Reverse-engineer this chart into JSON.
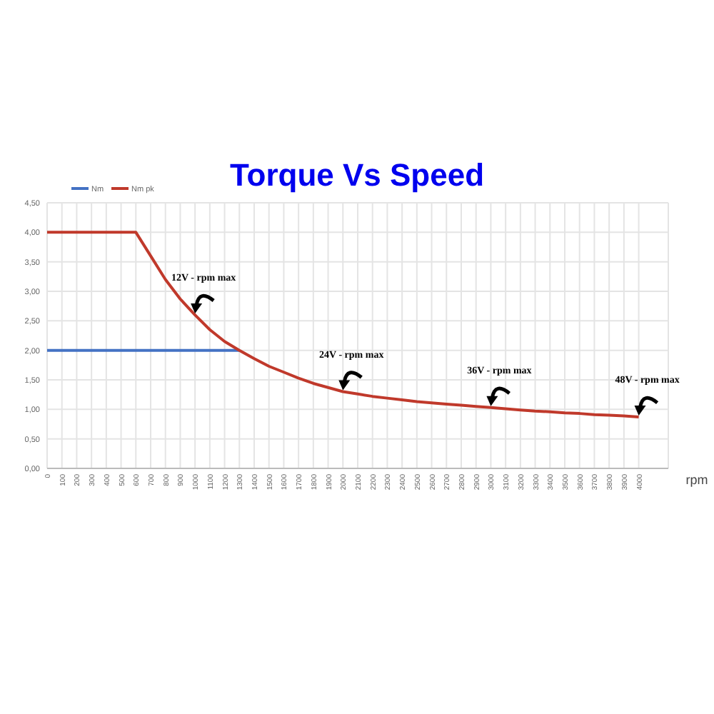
{
  "chart_data": {
    "type": "line",
    "title": "Torque Vs Speed",
    "xlabel": "rpm",
    "x": [
      0,
      100,
      200,
      300,
      400,
      500,
      600,
      700,
      800,
      900,
      1000,
      1100,
      1200,
      1300,
      1400,
      1500,
      1600,
      1700,
      1800,
      1900,
      2000,
      2100,
      2200,
      2300,
      2400,
      2500,
      2600,
      2700,
      2800,
      2900,
      3000,
      3100,
      3200,
      3300,
      3400,
      3500,
      3600,
      3700,
      3800,
      3900,
      4000
    ],
    "series": [
      {
        "name": "Nm",
        "color": "#4472c4",
        "values": [
          2,
          2,
          2,
          2,
          2,
          2,
          2,
          2,
          2,
          2,
          2,
          2,
          2,
          2,
          null,
          null,
          null,
          null,
          null,
          null,
          null,
          null,
          null,
          null,
          null,
          null,
          null,
          null,
          null,
          null,
          null,
          null,
          null,
          null,
          null,
          null,
          null,
          null,
          null,
          null,
          null
        ]
      },
      {
        "name": "Nm pk",
        "color": "#c0392b",
        "values": [
          4,
          4,
          4,
          4,
          4,
          4,
          4,
          3.6,
          3.2,
          2.87,
          2.6,
          2.35,
          2.15,
          2,
          1.86,
          1.73,
          1.63,
          1.53,
          1.44,
          1.37,
          1.3,
          1.26,
          1.22,
          1.19,
          1.16,
          1.13,
          1.11,
          1.09,
          1.07,
          1.05,
          1.03,
          1.01,
          0.99,
          0.97,
          0.96,
          0.94,
          0.93,
          0.91,
          0.9,
          0.89,
          0.87
        ]
      }
    ],
    "xlim": [
      0,
      4200
    ],
    "xticks": [
      0,
      100,
      200,
      300,
      400,
      500,
      600,
      700,
      800,
      900,
      1000,
      1100,
      1200,
      1300,
      1400,
      1500,
      1600,
      1700,
      1800,
      1900,
      2000,
      2100,
      2200,
      2300,
      2400,
      2500,
      2600,
      2700,
      2800,
      2900,
      3000,
      3100,
      3200,
      3300,
      3400,
      3500,
      3600,
      3700,
      3800,
      3900,
      4000
    ],
    "ylim": [
      0,
      4.5
    ],
    "yticks": [
      {
        "value": 0,
        "label": "0,00"
      },
      {
        "value": 0.5,
        "label": "0,50"
      },
      {
        "value": 1,
        "label": "1,00"
      },
      {
        "value": 1.5,
        "label": "1,50"
      },
      {
        "value": 2,
        "label": "2,00"
      },
      {
        "value": 2.5,
        "label": "2,50"
      },
      {
        "value": 3,
        "label": "3,00"
      },
      {
        "value": 3.5,
        "label": "3,50"
      },
      {
        "value": 4,
        "label": "4,00"
      },
      {
        "value": 4.5,
        "label": "4,50"
      }
    ],
    "grid": true,
    "legend": "top left",
    "marker": "none",
    "line_style": "solid",
    "annotations": [
      "12V - rpm max",
      "24V - rpm max",
      "36V - rpm max",
      "48V - rpm max"
    ]
  }
}
